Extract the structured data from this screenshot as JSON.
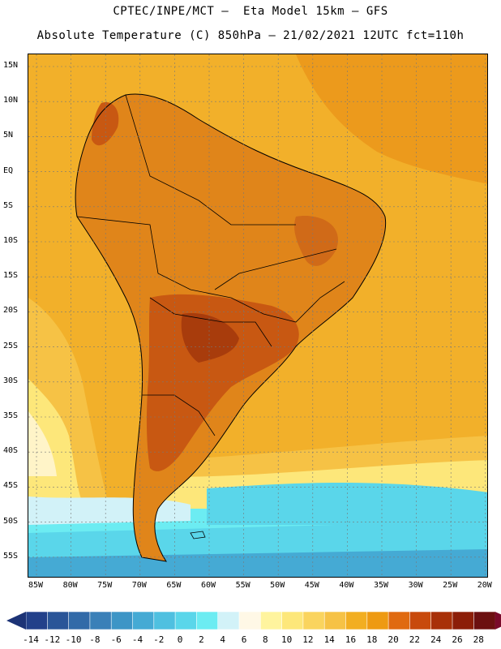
{
  "header": {
    "line1": "CPTEC/INPE/MCT –  Eta Model 15km – GFS",
    "line2": "Absolute Temperature (C) 850hPa – 21/02/2021 12UTC fct=110h"
  },
  "axes": {
    "lat_labels": [
      "15N",
      "10N",
      "5N",
      "EQ",
      "5S",
      "10S",
      "15S",
      "20S",
      "25S",
      "30S",
      "35S",
      "40S",
      "45S",
      "50S",
      "55S"
    ],
    "lon_labels": [
      "85W",
      "80W",
      "75W",
      "70W",
      "65W",
      "60W",
      "55W",
      "50W",
      "45W",
      "40W",
      "35W",
      "30W",
      "25W",
      "20W"
    ]
  },
  "colorbar": {
    "labels": [
      "-14",
      "-12",
      "-10",
      "-8",
      "-6",
      "-4",
      "-2",
      "0",
      "2",
      "4",
      "6",
      "8",
      "10",
      "12",
      "14",
      "16",
      "18",
      "20",
      "22",
      "24",
      "26",
      "28"
    ],
    "colors": [
      "#22408a",
      "#2a5598",
      "#326aa8",
      "#3a80b8",
      "#3d95c6",
      "#45aad4",
      "#4fc0e0",
      "#5ad6ea",
      "#6cecf2",
      "#d2f2f8",
      "#fff8e6",
      "#fff49e",
      "#fde77a",
      "#fad45e",
      "#f6c245",
      "#f2ae21",
      "#ee9a12",
      "#e06a10",
      "#c84a0c",
      "#a83008",
      "#8c1e08",
      "#6c1010"
    ]
  },
  "map": {
    "field": "Absolute Temperature 850hPa",
    "units": "C",
    "colors": {
      "ocean_warm": "#f2ae21",
      "land_hot": "#d86c18",
      "land_hottest": "#b85010",
      "cold_sea": "#5ad6ea"
    }
  }
}
